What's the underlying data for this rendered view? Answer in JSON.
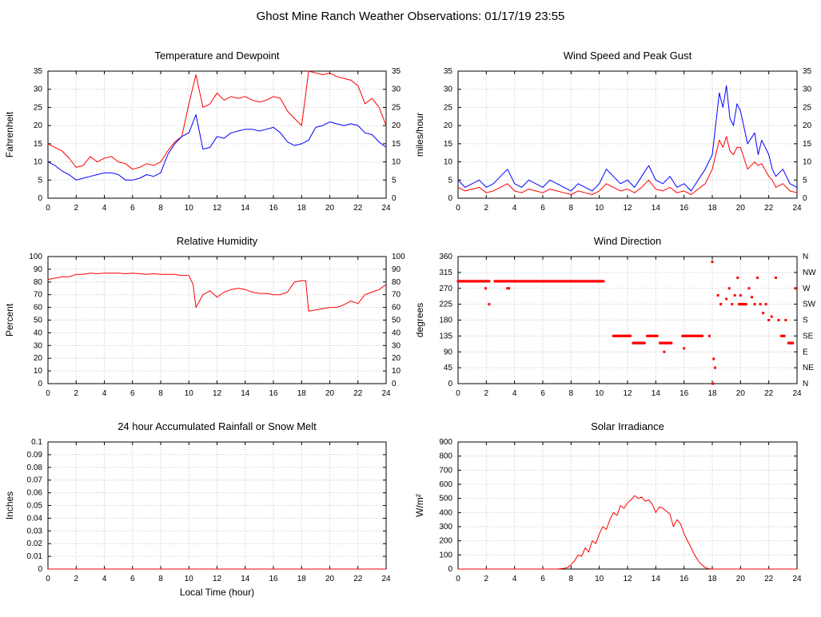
{
  "page": {
    "title": "Ghost Mine Ranch Weather Observations: 01/17/19 23:55"
  },
  "chart_data": [
    {
      "id": "temperature-dewpoint",
      "type": "line",
      "title": "Temperature and Dewpoint",
      "ylabel": "Fahrenheit",
      "xlim": [
        0,
        24
      ],
      "ylim": [
        0,
        35
      ],
      "xtick": 2,
      "ytick": 5,
      "mirror": true,
      "grid": true,
      "series": [
        {
          "name": "Temperature",
          "color": "#ff0000",
          "x": [
            0,
            0.5,
            1,
            1.5,
            2,
            2.5,
            3,
            3.5,
            4,
            4.5,
            5,
            5.5,
            6,
            6.5,
            7,
            7.5,
            8,
            8.5,
            9,
            9.5,
            10,
            10.5,
            11,
            11.5,
            12,
            12.5,
            13,
            13.5,
            14,
            14.5,
            15,
            15.5,
            16,
            16.5,
            17,
            17.5,
            18,
            18.5,
            19,
            19.5,
            20,
            20.5,
            21,
            21.5,
            22,
            22.5,
            23,
            23.5,
            24
          ],
          "y": [
            15,
            14,
            13,
            11,
            8.5,
            9,
            11.5,
            10,
            11,
            11.5,
            10,
            9.5,
            8,
            8.5,
            9.5,
            9,
            10,
            13,
            15.5,
            17,
            26,
            34,
            25,
            26,
            29,
            27,
            28,
            27.5,
            28,
            27,
            26.5,
            27,
            28,
            27.5,
            24,
            22,
            20,
            35,
            34.5,
            34,
            34.5,
            33.5,
            33,
            32.5,
            31,
            26,
            27.5,
            25,
            20
          ]
        },
        {
          "name": "Dewpoint",
          "color": "#0000ff",
          "x": [
            0,
            0.5,
            1,
            1.5,
            2,
            2.5,
            3,
            3.5,
            4,
            4.5,
            5,
            5.5,
            6,
            6.5,
            7,
            7.5,
            8,
            8.5,
            9,
            9.5,
            10,
            10.5,
            11,
            11.5,
            12,
            12.5,
            13,
            13.5,
            14,
            14.5,
            15,
            15.5,
            16,
            16.5,
            17,
            17.5,
            18,
            18.5,
            19,
            19.5,
            20,
            20.5,
            21,
            21.5,
            22,
            22.5,
            23,
            23.5,
            24
          ],
          "y": [
            10,
            9,
            7.5,
            6.5,
            5,
            5.5,
            6,
            6.5,
            7,
            7,
            6.5,
            5,
            5,
            5.5,
            6.5,
            6,
            7,
            12,
            15,
            17,
            18,
            23,
            13.5,
            14,
            17,
            16.5,
            18,
            18.5,
            19,
            19,
            18.5,
            19,
            19.5,
            18,
            15.5,
            14.5,
            15,
            16,
            19.5,
            20,
            21,
            20.5,
            20,
            20.5,
            20,
            18,
            17.5,
            15.5,
            14
          ]
        }
      ]
    },
    {
      "id": "wind-speed-gust",
      "type": "line",
      "title": "Wind Speed and Peak Gust",
      "ylabel": "miles/hour",
      "xlim": [
        0,
        24
      ],
      "ylim": [
        0,
        35
      ],
      "xtick": 2,
      "ytick": 5,
      "mirror": true,
      "grid": true,
      "series": [
        {
          "name": "Peak Gust",
          "color": "#0000ff",
          "x": [
            0,
            0.5,
            1,
            1.5,
            2,
            2.5,
            3,
            3.5,
            4,
            4.5,
            5,
            5.5,
            6,
            6.5,
            7,
            7.5,
            8,
            8.5,
            9,
            9.5,
            10,
            10.5,
            11,
            11.5,
            12,
            12.5,
            13,
            13.5,
            14,
            14.5,
            15,
            15.5,
            16,
            16.5,
            17,
            17.5,
            18,
            18.5,
            18.75,
            19,
            19.25,
            19.5,
            19.75,
            20,
            20.5,
            21,
            21.25,
            21.5,
            22,
            22.25,
            22.5,
            23,
            23.5,
            24
          ],
          "y": [
            5,
            3,
            4,
            5,
            3,
            4,
            6,
            8,
            4,
            3,
            5,
            4,
            3,
            5,
            4,
            3,
            2,
            4,
            3,
            2,
            4,
            8,
            6,
            4,
            5,
            3,
            6,
            9,
            5,
            4,
            6,
            3,
            4,
            2,
            5,
            8,
            12,
            29,
            25,
            31,
            22,
            20,
            26,
            24,
            15,
            18,
            12,
            16,
            12,
            8,
            6,
            8,
            4,
            3
          ]
        },
        {
          "name": "Wind Speed",
          "color": "#ff0000",
          "x": [
            0,
            0.5,
            1,
            1.5,
            2,
            2.5,
            3,
            3.5,
            4,
            4.5,
            5,
            5.5,
            6,
            6.5,
            7,
            7.5,
            8,
            8.5,
            9,
            9.5,
            10,
            10.5,
            11,
            11.5,
            12,
            12.5,
            13,
            13.5,
            14,
            14.5,
            15,
            15.5,
            16,
            16.5,
            17,
            17.5,
            18,
            18.5,
            18.75,
            19,
            19.25,
            19.5,
            19.75,
            20,
            20.5,
            21,
            21.25,
            21.5,
            22,
            22.25,
            22.5,
            23,
            23.5,
            24
          ],
          "y": [
            3,
            2,
            2.5,
            3,
            1.5,
            2,
            3,
            4,
            2,
            1.5,
            2.5,
            2,
            1.5,
            2.5,
            2,
            1.5,
            1,
            2,
            1.5,
            1,
            2,
            4,
            3,
            2,
            2.5,
            1.5,
            3,
            5,
            2.5,
            2,
            3,
            1.5,
            2,
            1,
            2.5,
            4,
            8,
            16,
            14,
            17,
            13,
            12,
            14,
            14,
            8,
            10,
            9,
            9.5,
            6,
            5,
            3,
            4,
            2,
            1.5
          ]
        }
      ]
    },
    {
      "id": "relative-humidity",
      "type": "line",
      "title": "Relative Humidity",
      "ylabel": "Percent",
      "xlim": [
        0,
        24
      ],
      "ylim": [
        0,
        100
      ],
      "xtick": 2,
      "ytick": 10,
      "mirror": true,
      "grid": true,
      "series": [
        {
          "name": "Relative Humidity",
          "color": "#ff0000",
          "x": [
            0,
            0.5,
            1,
            1.5,
            2,
            2.5,
            3,
            3.5,
            4,
            4.5,
            5,
            5.5,
            6,
            6.5,
            7,
            7.5,
            8,
            8.5,
            9,
            9.5,
            10,
            10.3,
            10.5,
            11,
            11.5,
            12,
            12.5,
            13,
            13.5,
            14,
            14.5,
            15,
            15.5,
            16,
            16.5,
            17,
            17.5,
            18,
            18.3,
            18.5,
            19,
            19.5,
            20,
            20.5,
            21,
            21.5,
            22,
            22.5,
            23,
            23.5,
            24
          ],
          "y": [
            82,
            83,
            84,
            84,
            86,
            86,
            87,
            86.5,
            87,
            87,
            87,
            86.5,
            87,
            86.5,
            86,
            86.5,
            86,
            86,
            86,
            85,
            85,
            78,
            60,
            70,
            73,
            68,
            72,
            74,
            75,
            74,
            72,
            71,
            71,
            70,
            70,
            72,
            80,
            81,
            81,
            57,
            58,
            59,
            60,
            60,
            62,
            65,
            63,
            70,
            72,
            74,
            78
          ]
        }
      ]
    },
    {
      "id": "wind-direction",
      "type": "scatter",
      "title": "Wind Direction",
      "ylabel": "degrees",
      "xlim": [
        0,
        24
      ],
      "ylim": [
        0,
        360
      ],
      "xtick": 2,
      "ytick": 45,
      "mirror": false,
      "right_labels": [
        "N",
        "NE",
        "E",
        "SE",
        "S",
        "SW",
        "W",
        "NW",
        "N"
      ],
      "grid": true,
      "series": [
        {
          "name": "Wind Direction",
          "color": "#ff0000",
          "runs": [
            [
              0,
              2.2,
              290
            ],
            [
              2.6,
              10.3,
              290
            ],
            [
              11.0,
              12.2,
              135
            ],
            [
              12.4,
              13.2,
              115
            ],
            [
              13.4,
              14.1,
              135
            ],
            [
              14.3,
              15.1,
              115
            ],
            [
              15.9,
              17.3,
              135
            ],
            [
              19.9,
              20.4,
              225
            ],
            [
              22.9,
              23.1,
              135
            ],
            [
              23.4,
              23.7,
              115
            ]
          ],
          "points": [
            [
              1.95,
              270
            ],
            [
              2.2,
              225
            ],
            [
              3.5,
              270
            ],
            [
              3.6,
              270
            ],
            [
              14.6,
              90
            ],
            [
              16.0,
              100
            ],
            [
              17.8,
              135
            ],
            [
              18.0,
              345
            ],
            [
              18.05,
              0
            ],
            [
              18.1,
              70
            ],
            [
              18.2,
              45
            ],
            [
              18.4,
              250
            ],
            [
              18.6,
              225
            ],
            [
              19.0,
              240
            ],
            [
              19.2,
              270
            ],
            [
              19.4,
              225
            ],
            [
              19.6,
              250
            ],
            [
              19.8,
              300
            ],
            [
              20.0,
              250
            ],
            [
              20.6,
              270
            ],
            [
              20.8,
              245
            ],
            [
              21.0,
              225
            ],
            [
              21.2,
              300
            ],
            [
              21.4,
              225
            ],
            [
              21.6,
              200
            ],
            [
              21.8,
              225
            ],
            [
              22.0,
              180
            ],
            [
              22.2,
              190
            ],
            [
              22.5,
              300
            ],
            [
              22.7,
              180
            ],
            [
              23.2,
              180
            ],
            [
              23.9,
              270
            ]
          ]
        }
      ]
    },
    {
      "id": "rainfall",
      "type": "line",
      "title": "24 hour Accumulated Rainfall or Snow Melt",
      "ylabel": "Inches",
      "xlabel": "Local Time (hour)",
      "xlim": [
        0,
        24
      ],
      "ylim": [
        0,
        0.1
      ],
      "xtick": 2,
      "ytick": 0.01,
      "mirror": false,
      "grid": true,
      "series": [
        {
          "name": "Rainfall",
          "color": "#ff0000",
          "x": [
            0,
            24
          ],
          "y": [
            0,
            0
          ]
        }
      ]
    },
    {
      "id": "solar-irradiance",
      "type": "line",
      "title": "Solar Irradiance",
      "ylabel": "W/m²",
      "xlim": [
        0,
        24
      ],
      "ylim": [
        0,
        900
      ],
      "xtick": 2,
      "ytick": 100,
      "mirror": false,
      "grid": true,
      "series": [
        {
          "name": "Solar Irradiance",
          "color": "#ff0000",
          "x": [
            0,
            7,
            7.25,
            7.5,
            7.75,
            8,
            8.25,
            8.5,
            8.75,
            9,
            9.25,
            9.5,
            9.75,
            10,
            10.25,
            10.5,
            10.75,
            11,
            11.25,
            11.5,
            11.75,
            12,
            12.25,
            12.5,
            12.75,
            13,
            13.25,
            13.5,
            13.75,
            14,
            14.25,
            14.5,
            14.75,
            15,
            15.25,
            15.5,
            15.75,
            16,
            16.25,
            16.5,
            16.75,
            17,
            17.25,
            17.5,
            17.75,
            18,
            24
          ],
          "y": [
            0,
            0,
            2,
            5,
            10,
            30,
            60,
            100,
            90,
            150,
            120,
            200,
            180,
            250,
            300,
            280,
            350,
            400,
            380,
            450,
            430,
            470,
            490,
            520,
            500,
            510,
            480,
            490,
            460,
            400,
            440,
            430,
            410,
            390,
            300,
            350,
            320,
            250,
            200,
            150,
            100,
            60,
            30,
            10,
            3,
            0,
            0
          ]
        }
      ]
    }
  ]
}
